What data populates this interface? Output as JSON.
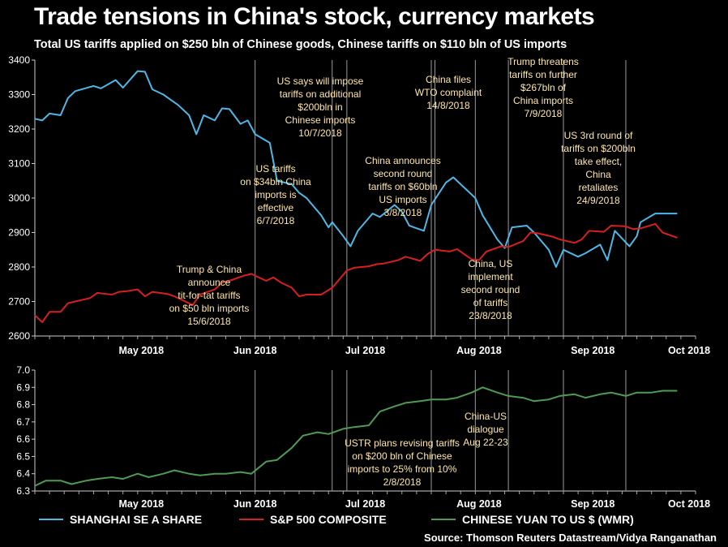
{
  "title": "Trade tensions in China's stock, currency markets",
  "subtitle": "Total US tariffs applied on $250 bln of Chinese goods, Chinese tariffs on $110 bln of US imports",
  "source": "Source: Thomson Reuters Datastream/Vidya Ranganathan",
  "colors": {
    "shanghai": "#4db8e8",
    "sp500": "#d62020",
    "yuan": "#4f9a54",
    "annotation": "#ffe7a8",
    "vline": "#9a9a9a"
  },
  "legend": [
    {
      "label": "SHANGHAI SE A SHARE",
      "color": "#4db8e8"
    },
    {
      "label": "S&P 500 COMPOSITE",
      "color": "#d62020"
    },
    {
      "label": "CHINESE YUAN TO US $ (WMR)",
      "color": "#4f9a54"
    }
  ],
  "chart_data": [
    {
      "type": "line",
      "name": "upper",
      "ylim": [
        2600,
        3400
      ],
      "yticks": [
        2600,
        2700,
        2800,
        2900,
        3000,
        3100,
        3200,
        3300,
        3400
      ],
      "xlim": [
        "2018-04-16",
        "2018-10-13"
      ],
      "xticks": [
        {
          "date": "2018-05-15",
          "label": "May 2018"
        },
        {
          "date": "2018-06-15",
          "label": "Jun 2018"
        },
        {
          "date": "2018-07-15",
          "label": "Jul 2018"
        },
        {
          "date": "2018-08-15",
          "label": "Aug 2018"
        },
        {
          "date": "2018-09-15",
          "label": "Sep 2018"
        },
        {
          "date": "2018-10-15",
          "label": "Oct 2018"
        }
      ],
      "event_dates": [
        "2018-06-15",
        "2018-07-06",
        "2018-07-10",
        "2018-08-02",
        "2018-08-03",
        "2018-08-14",
        "2018-08-23",
        "2018-09-07",
        "2018-09-24"
      ],
      "series": [
        {
          "name": "SHANGHAI SE A SHARE",
          "x": [
            "2018-04-16",
            "2018-04-18",
            "2018-04-20",
            "2018-04-23",
            "2018-04-25",
            "2018-04-27",
            "2018-05-02",
            "2018-05-04",
            "2018-05-08",
            "2018-05-10",
            "2018-05-14",
            "2018-05-16",
            "2018-05-18",
            "2018-05-21",
            "2018-05-23",
            "2018-05-25",
            "2018-05-28",
            "2018-05-30",
            "2018-06-01",
            "2018-06-04",
            "2018-06-06",
            "2018-06-08",
            "2018-06-11",
            "2018-06-13",
            "2018-06-15",
            "2018-06-19",
            "2018-06-21",
            "2018-06-25",
            "2018-06-27",
            "2018-06-29",
            "2018-07-03",
            "2018-07-05",
            "2018-07-06",
            "2018-07-09",
            "2018-07-11",
            "2018-07-13",
            "2018-07-17",
            "2018-07-19",
            "2018-07-23",
            "2018-07-25",
            "2018-07-27",
            "2018-07-31",
            "2018-08-02",
            "2018-08-06",
            "2018-08-08",
            "2018-08-10",
            "2018-08-14",
            "2018-08-16",
            "2018-08-20",
            "2018-08-22",
            "2018-08-24",
            "2018-08-28",
            "2018-08-30",
            "2018-09-03",
            "2018-09-05",
            "2018-09-07",
            "2018-09-11",
            "2018-09-13",
            "2018-09-17",
            "2018-09-19",
            "2018-09-21",
            "2018-09-25",
            "2018-09-27",
            "2018-09-28",
            "2018-10-02",
            "2018-10-05",
            "2018-10-08"
          ],
          "values": [
            3230,
            3225,
            3245,
            3240,
            3290,
            3310,
            3325,
            3318,
            3342,
            3320,
            3368,
            3366,
            3315,
            3300,
            3285,
            3270,
            3240,
            3185,
            3240,
            3225,
            3260,
            3258,
            3215,
            3225,
            3185,
            3160,
            3050,
            3040,
            3015,
            3000,
            2950,
            2915,
            2930,
            2890,
            2860,
            2905,
            2955,
            2945,
            2980,
            2960,
            2920,
            2905,
            2980,
            3045,
            3060,
            3040,
            3000,
            2950,
            2880,
            2855,
            2915,
            2920,
            2900,
            2850,
            2800,
            2850,
            2830,
            2840,
            2865,
            2820,
            2905,
            2860,
            2890,
            2930,
            2955,
            2955,
            2955
          ]
        },
        {
          "name": "S&P 500 COMPOSITE",
          "x": [
            "2018-04-16",
            "2018-04-18",
            "2018-04-20",
            "2018-04-23",
            "2018-04-25",
            "2018-04-27",
            "2018-05-01",
            "2018-05-03",
            "2018-05-07",
            "2018-05-09",
            "2018-05-11",
            "2018-05-14",
            "2018-05-16",
            "2018-05-18",
            "2018-05-22",
            "2018-05-24",
            "2018-05-29",
            "2018-05-31",
            "2018-06-04",
            "2018-06-06",
            "2018-06-08",
            "2018-06-12",
            "2018-06-14",
            "2018-06-18",
            "2018-06-20",
            "2018-06-22",
            "2018-06-25",
            "2018-06-27",
            "2018-06-29",
            "2018-07-03",
            "2018-07-06",
            "2018-07-10",
            "2018-07-12",
            "2018-07-16",
            "2018-07-18",
            "2018-07-20",
            "2018-07-24",
            "2018-07-26",
            "2018-07-30",
            "2018-08-01",
            "2018-08-03",
            "2018-08-07",
            "2018-08-09",
            "2018-08-13",
            "2018-08-15",
            "2018-08-17",
            "2018-08-21",
            "2018-08-23",
            "2018-08-27",
            "2018-08-29",
            "2018-08-31",
            "2018-09-04",
            "2018-09-06",
            "2018-09-10",
            "2018-09-12",
            "2018-09-14",
            "2018-09-18",
            "2018-09-20",
            "2018-09-24",
            "2018-09-26",
            "2018-09-28",
            "2018-10-02",
            "2018-10-04",
            "2018-10-08"
          ],
          "values": [
            2660,
            2640,
            2670,
            2670,
            2695,
            2700,
            2710,
            2725,
            2720,
            2728,
            2730,
            2735,
            2715,
            2728,
            2722,
            2715,
            2690,
            2720,
            2735,
            2755,
            2760,
            2775,
            2780,
            2760,
            2770,
            2755,
            2740,
            2715,
            2720,
            2720,
            2740,
            2790,
            2798,
            2802,
            2808,
            2810,
            2820,
            2830,
            2818,
            2838,
            2850,
            2845,
            2852,
            2822,
            2820,
            2845,
            2860,
            2858,
            2875,
            2900,
            2898,
            2888,
            2880,
            2870,
            2880,
            2905,
            2902,
            2920,
            2918,
            2910,
            2912,
            2925,
            2900,
            2885
          ]
        }
      ],
      "annotations": [
        {
          "lines": [
            "Trump & China",
            "announce",
            "tit-for-tat tariffs",
            "on $50 bln imports",
            "15/6/2018"
          ]
        },
        {
          "lines": [
            "US tariffs",
            "on $34bln China",
            "imports is",
            "effective",
            "6/7/2018"
          ]
        },
        {
          "lines": [
            "US says will impose",
            "tariffs on additional",
            "$200bln in",
            "Chinese imports",
            "10/7/2018"
          ]
        },
        {
          "lines": [
            "China announces",
            "second round",
            "tariffs on $60bln",
            "US imports",
            "3/8/2018"
          ]
        },
        {
          "lines": [
            "China files",
            "WTO complaint",
            "14/8/2018"
          ]
        },
        {
          "lines": [
            "China, US",
            "implement",
            "second round",
            "of tariffs",
            "23/8/2018"
          ]
        },
        {
          "lines": [
            "Trump threatens",
            "tariffs on further",
            "$267bln of",
            "China imports",
            "7/9/2018"
          ]
        },
        {
          "lines": [
            "US 3rd round of",
            "tariffs on $200bln",
            "take effect,",
            "China",
            "retaliates",
            "24/9/2018"
          ]
        }
      ]
    },
    {
      "type": "line",
      "name": "lower",
      "ylim": [
        6.3,
        7.0
      ],
      "yticks": [
        6.3,
        6.4,
        6.5,
        6.6,
        6.7,
        6.8,
        6.9,
        7.0
      ],
      "xlim": [
        "2018-04-16",
        "2018-10-13"
      ],
      "xticks": [
        {
          "date": "2018-05-15",
          "label": "May 2018"
        },
        {
          "date": "2018-06-15",
          "label": "Jun 2018"
        },
        {
          "date": "2018-07-15",
          "label": "Jul 2018"
        },
        {
          "date": "2018-08-15",
          "label": "Aug 2018"
        },
        {
          "date": "2018-09-15",
          "label": "Sep 2018"
        },
        {
          "date": "2018-10-15",
          "label": "Oct 2018"
        }
      ],
      "event_dates": [
        "2018-06-15",
        "2018-07-06",
        "2018-07-10",
        "2018-08-02",
        "2018-08-14",
        "2018-08-23",
        "2018-09-07",
        "2018-09-24"
      ],
      "series": [
        {
          "name": "CHINESE YUAN TO US $ (WMR)",
          "x": [
            "2018-04-16",
            "2018-04-19",
            "2018-04-23",
            "2018-04-26",
            "2018-04-30",
            "2018-05-03",
            "2018-05-07",
            "2018-05-10",
            "2018-05-14",
            "2018-05-17",
            "2018-05-21",
            "2018-05-24",
            "2018-05-28",
            "2018-05-31",
            "2018-06-04",
            "2018-06-07",
            "2018-06-11",
            "2018-06-14",
            "2018-06-18",
            "2018-06-21",
            "2018-06-25",
            "2018-06-28",
            "2018-07-02",
            "2018-07-05",
            "2018-07-09",
            "2018-07-12",
            "2018-07-16",
            "2018-07-19",
            "2018-07-23",
            "2018-07-26",
            "2018-07-30",
            "2018-08-02",
            "2018-08-06",
            "2018-08-09",
            "2018-08-13",
            "2018-08-16",
            "2018-08-20",
            "2018-08-23",
            "2018-08-27",
            "2018-08-30",
            "2018-09-03",
            "2018-09-06",
            "2018-09-10",
            "2018-09-13",
            "2018-09-17",
            "2018-09-20",
            "2018-09-24",
            "2018-09-27",
            "2018-10-01",
            "2018-10-04",
            "2018-10-08"
          ],
          "values": [
            6.33,
            6.36,
            6.36,
            6.34,
            6.36,
            6.37,
            6.38,
            6.37,
            6.4,
            6.38,
            6.4,
            6.42,
            6.4,
            6.39,
            6.4,
            6.4,
            6.41,
            6.4,
            6.47,
            6.48,
            6.55,
            6.62,
            6.64,
            6.63,
            6.66,
            6.67,
            6.68,
            6.76,
            6.79,
            6.81,
            6.82,
            6.83,
            6.83,
            6.84,
            6.87,
            6.9,
            6.87,
            6.85,
            6.84,
            6.82,
            6.83,
            6.85,
            6.86,
            6.84,
            6.86,
            6.87,
            6.85,
            6.87,
            6.87,
            6.88,
            6.88
          ]
        }
      ],
      "annotations": [
        {
          "lines": [
            "USTR plans revising tariffs",
            "on $200 bln of Chinese",
            "imports to 25% from 10%",
            "2/8/2018"
          ]
        },
        {
          "lines": [
            "China-US",
            "dialogue",
            "Aug 22-23"
          ]
        }
      ]
    }
  ]
}
